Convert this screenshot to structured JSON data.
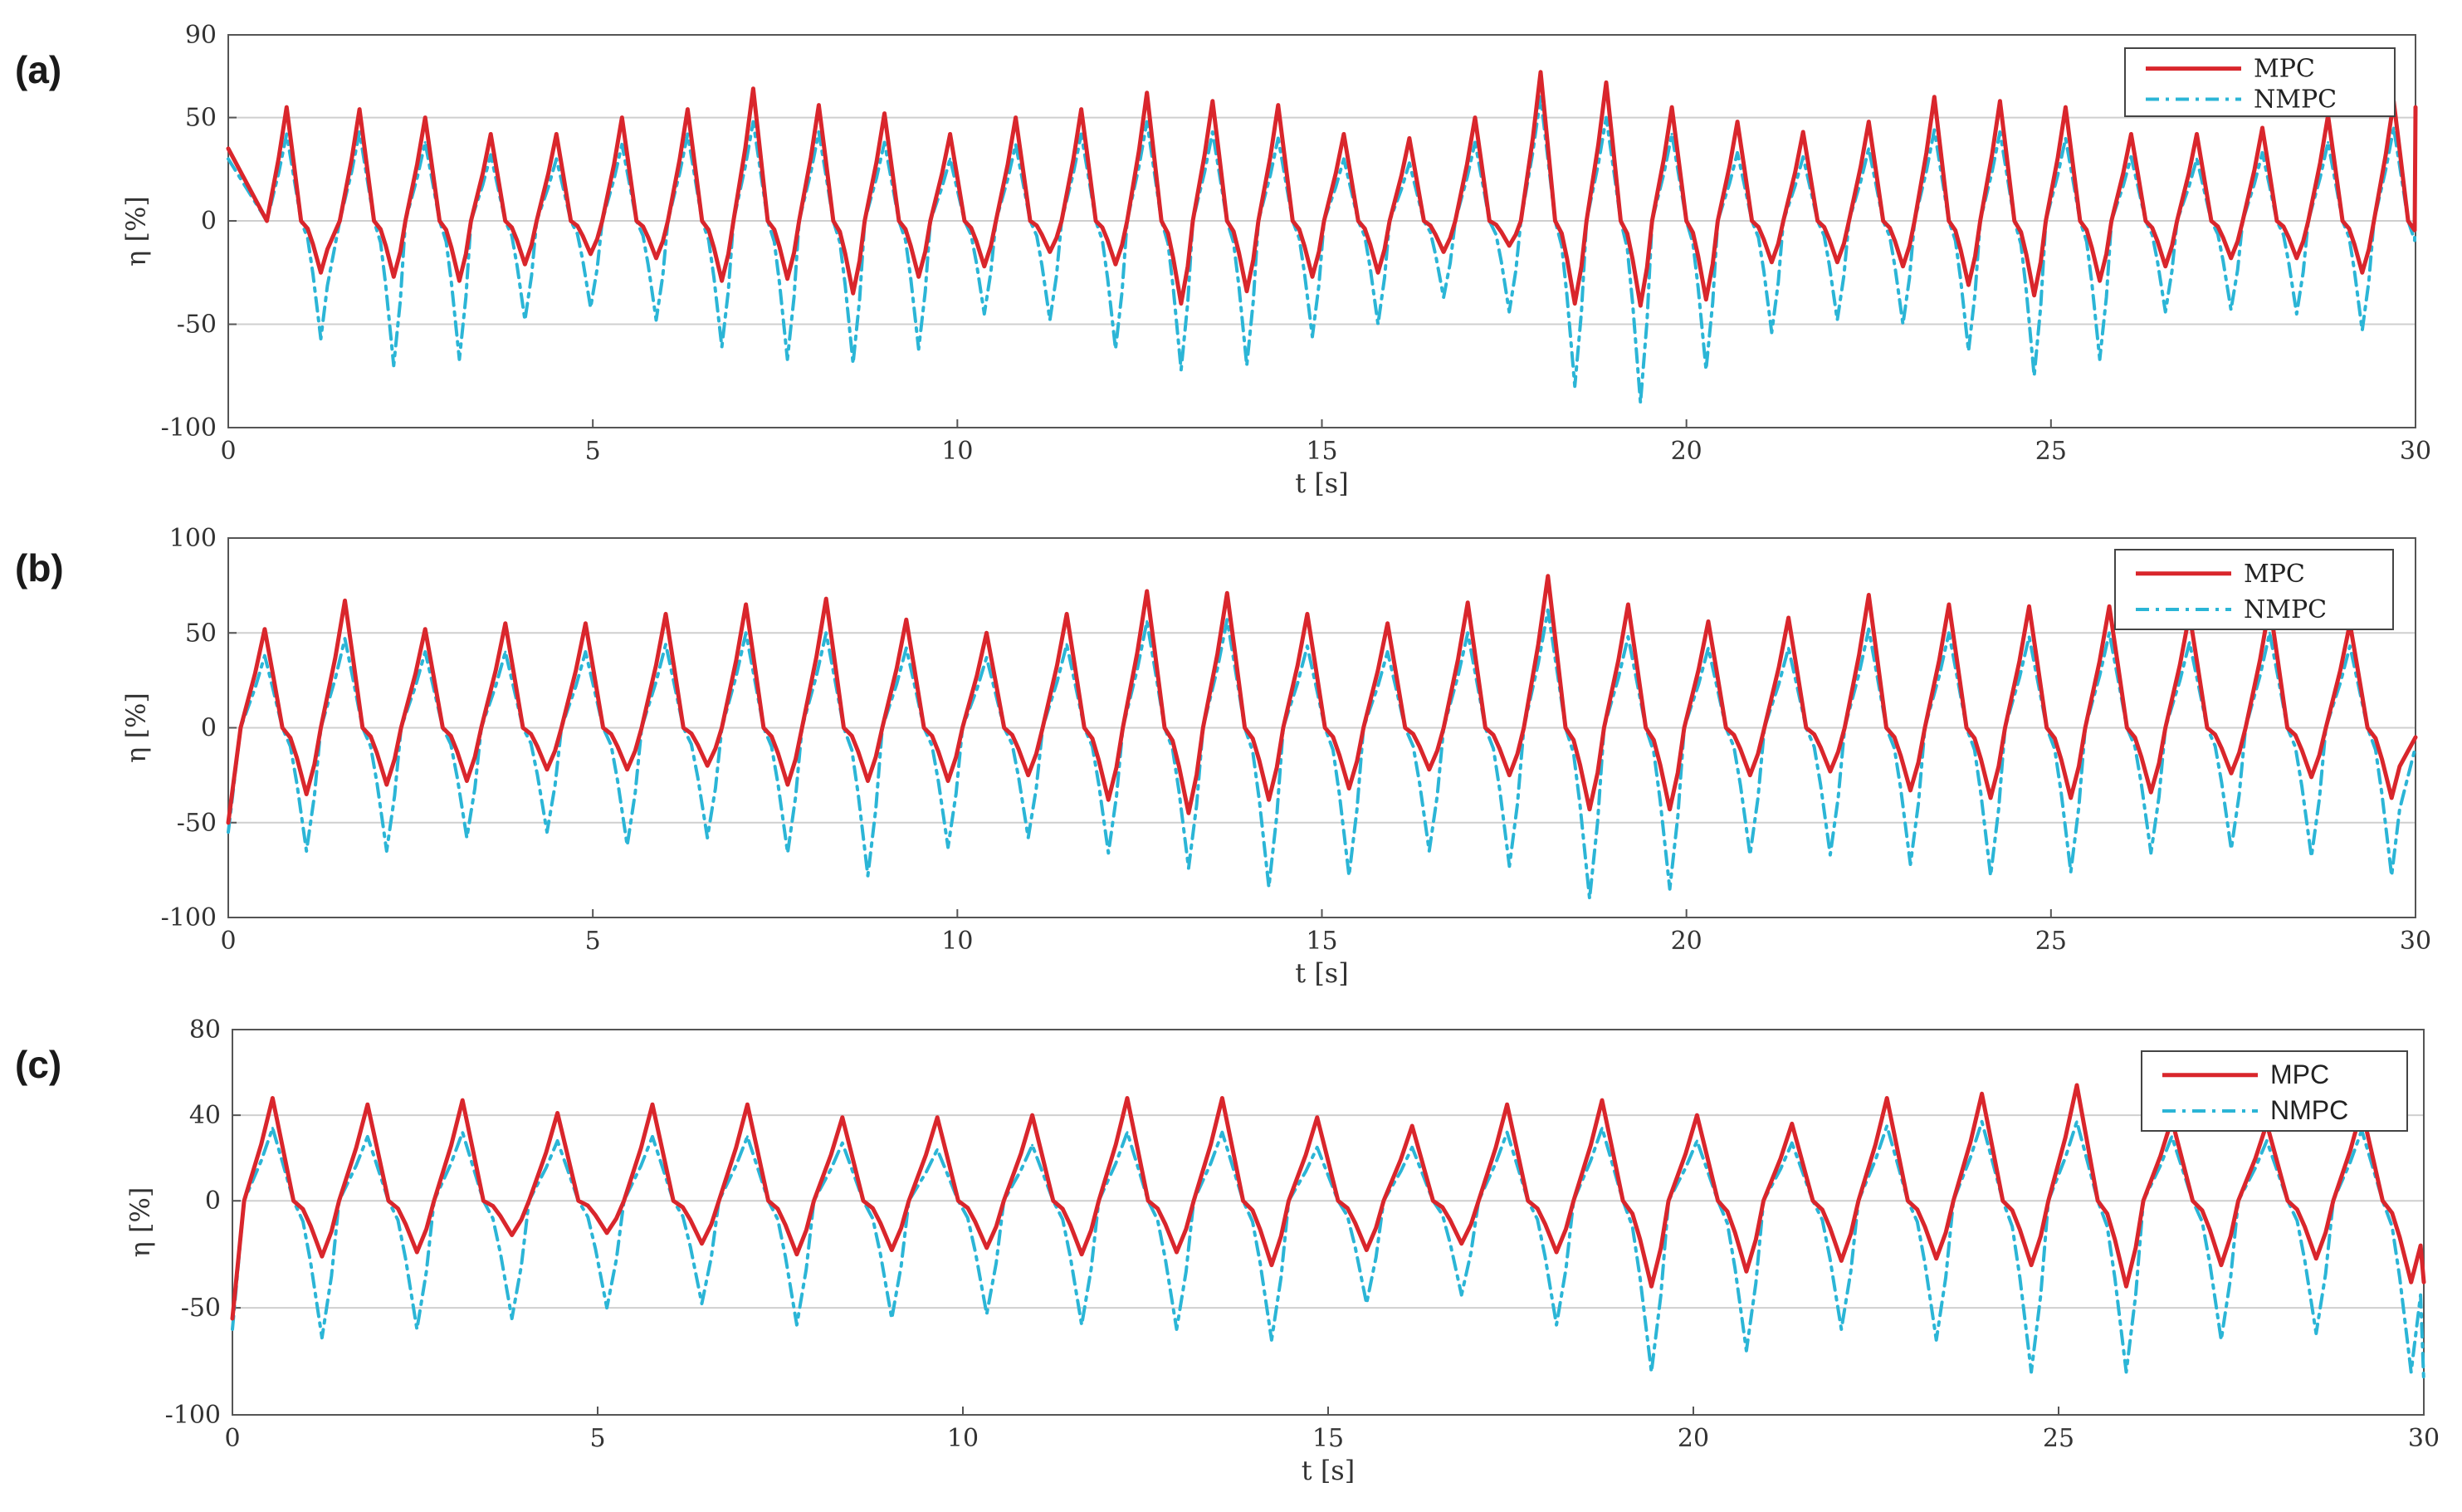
{
  "colors": {
    "mpc": "#d9262c",
    "nmpc": "#2bb5d6",
    "grid": "#cfcfcf",
    "axis": "#555555"
  },
  "chart_data": [
    {
      "panel_label": "(a)",
      "type": "line",
      "xlabel": "t [s]",
      "ylabel": "η [%]",
      "xlim": [
        0,
        30
      ],
      "ylim": [
        -100,
        90
      ],
      "xticks": [
        0,
        5,
        10,
        15,
        20,
        25,
        30
      ],
      "yticks": [
        -100,
        -50,
        0,
        50,
        90
      ],
      "grid": true,
      "legend_position": "top-right",
      "series": [
        {
          "name": "MPC",
          "style": "solid",
          "start": 35,
          "end": 55,
          "peak_t": [
            0.8,
            1.8,
            2.7,
            3.6,
            4.5,
            5.4,
            6.3,
            7.2,
            8.1,
            9.0,
            9.9,
            10.8,
            11.7,
            12.6,
            13.5,
            14.4,
            15.3,
            16.2,
            17.1,
            18.0,
            18.9,
            19.8,
            20.7,
            21.6,
            22.5,
            23.4,
            24.3,
            25.2,
            26.1,
            27.0,
            27.9,
            28.8,
            29.7
          ],
          "peaks": [
            55,
            54,
            50,
            42,
            42,
            50,
            54,
            64,
            56,
            52,
            42,
            50,
            54,
            62,
            58,
            56,
            42,
            40,
            50,
            72,
            67,
            55,
            48,
            43,
            48,
            60,
            58,
            55,
            42,
            42,
            45,
            51,
            58
          ],
          "troughs": [
            -25,
            -27,
            -29,
            -21,
            -16,
            -18,
            -29,
            -28,
            -35,
            -27,
            -22,
            -15,
            -21,
            -40,
            -34,
            -27,
            -25,
            -15,
            -12,
            -40,
            -41,
            -38,
            -20,
            -20,
            -22,
            -31,
            -36,
            -29,
            -22,
            -18,
            -18,
            -25,
            -30
          ]
        },
        {
          "name": "NMPC",
          "style": "dashdot",
          "start": 30,
          "end": 45,
          "peak_t": [
            0.8,
            1.8,
            2.7,
            3.6,
            4.5,
            5.4,
            6.3,
            7.2,
            8.1,
            9.0,
            9.9,
            10.8,
            11.7,
            12.6,
            13.5,
            14.4,
            15.3,
            16.2,
            17.1,
            18.0,
            18.9,
            19.8,
            20.7,
            21.6,
            22.5,
            23.4,
            24.3,
            25.2,
            26.1,
            27.0,
            27.9,
            28.8,
            29.7
          ],
          "peaks": [
            42,
            43,
            38,
            32,
            30,
            37,
            42,
            48,
            43,
            38,
            30,
            37,
            42,
            48,
            43,
            40,
            30,
            28,
            38,
            60,
            50,
            42,
            33,
            31,
            35,
            44,
            43,
            40,
            31,
            30,
            33,
            38,
            45
          ],
          "troughs": [
            -57,
            -70,
            -67,
            -48,
            -42,
            -48,
            -61,
            -67,
            -69,
            -62,
            -45,
            -48,
            -62,
            -72,
            -70,
            -56,
            -50,
            -37,
            -44,
            -80,
            -88,
            -72,
            -54,
            -48,
            -50,
            -63,
            -75,
            -67,
            -44,
            -43,
            -45,
            -53,
            -63
          ]
        }
      ]
    },
    {
      "panel_label": "(b)",
      "type": "line",
      "xlabel": "t [s]",
      "ylabel": "η [%]",
      "xlim": [
        0,
        30
      ],
      "ylim": [
        -100,
        100
      ],
      "xticks": [
        0,
        5,
        10,
        15,
        20,
        25,
        30
      ],
      "yticks": [
        -100,
        -50,
        0,
        50,
        100
      ],
      "grid": true,
      "legend_position": "top-right",
      "series": [
        {
          "name": "MPC",
          "style": "solid",
          "start": -50,
          "end": -5,
          "peak_t": [
            0.5,
            1.6,
            2.7,
            3.8,
            4.9,
            6.0,
            7.1,
            8.2,
            9.3,
            10.4,
            11.5,
            12.6,
            13.7,
            14.8,
            15.9,
            17.0,
            18.1,
            19.2,
            20.3,
            21.4,
            22.5,
            23.6,
            24.7,
            25.8,
            26.9,
            28.0,
            29.1
          ],
          "peaks": [
            52,
            67,
            52,
            55,
            55,
            60,
            65,
            68,
            57,
            50,
            60,
            72,
            71,
            60,
            55,
            66,
            80,
            65,
            56,
            58,
            70,
            65,
            64,
            64,
            60,
            65,
            55
          ],
          "troughs": [
            -35,
            -30,
            -28,
            -22,
            -22,
            -20,
            -30,
            -28,
            -28,
            -25,
            -38,
            -45,
            -38,
            -32,
            -22,
            -25,
            -43,
            -43,
            -25,
            -23,
            -33,
            -37,
            -37,
            -34,
            -24,
            -26,
            -37
          ]
        },
        {
          "name": "NMPC",
          "style": "dashdot",
          "start": -55,
          "end": -10,
          "peak_t": [
            0.5,
            1.6,
            2.7,
            3.8,
            4.9,
            6.0,
            7.1,
            8.2,
            9.3,
            10.4,
            11.5,
            12.6,
            13.7,
            14.8,
            15.9,
            17.0,
            18.1,
            19.2,
            20.3,
            21.4,
            22.5,
            23.6,
            24.7,
            25.8,
            26.9,
            28.0,
            29.1
          ],
          "peaks": [
            38,
            47,
            40,
            40,
            40,
            44,
            50,
            50,
            42,
            37,
            44,
            56,
            57,
            43,
            40,
            50,
            62,
            48,
            42,
            42,
            52,
            50,
            48,
            50,
            45,
            50,
            43
          ],
          "troughs": [
            -65,
            -65,
            -58,
            -55,
            -62,
            -58,
            -66,
            -78,
            -63,
            -58,
            -66,
            -74,
            -84,
            -78,
            -65,
            -73,
            -90,
            -85,
            -67,
            -67,
            -72,
            -78,
            -76,
            -66,
            -64,
            -68,
            -78
          ]
        }
      ]
    },
    {
      "panel_label": "(c)",
      "type": "line",
      "xlabel": "t [s]",
      "ylabel": "η [%]",
      "xlim": [
        0,
        30
      ],
      "ylim": [
        -100,
        80
      ],
      "xticks": [
        0,
        5,
        10,
        15,
        20,
        25,
        30
      ],
      "yticks": [
        -100,
        -50,
        0,
        40,
        80
      ],
      "grid": true,
      "legend_position": "top-right",
      "series": [
        {
          "name": "MPC",
          "style": "solid",
          "start": -55,
          "end": -38,
          "peak_t": [
            0.55,
            1.85,
            3.15,
            4.45,
            5.75,
            7.05,
            8.35,
            9.65,
            10.95,
            12.25,
            13.55,
            14.85,
            16.15,
            17.45,
            18.75,
            20.05,
            21.35,
            22.65,
            23.95,
            25.25,
            26.55,
            27.85,
            29.15
          ],
          "peaks": [
            48,
            45,
            47,
            41,
            45,
            45,
            39,
            39,
            40,
            48,
            48,
            39,
            35,
            45,
            47,
            40,
            36,
            48,
            50,
            54,
            38,
            36,
            43
          ],
          "troughs": [
            -26,
            -24,
            -16,
            -15,
            -20,
            -25,
            -23,
            -22,
            -25,
            -24,
            -30,
            -23,
            -20,
            -24,
            -40,
            -33,
            -28,
            -27,
            -30,
            -40,
            -30,
            -27,
            -38
          ]
        },
        {
          "name": "NMPC",
          "style": "dashdot",
          "start": -60,
          "end": -85,
          "peak_t": [
            0.55,
            1.85,
            3.15,
            4.45,
            5.75,
            7.05,
            8.35,
            9.65,
            10.95,
            12.25,
            13.55,
            14.85,
            16.15,
            17.45,
            18.75,
            20.05,
            21.35,
            22.65,
            23.95,
            25.25,
            26.55,
            27.85,
            29.15
          ],
          "peaks": [
            34,
            30,
            32,
            28,
            30,
            30,
            27,
            24,
            26,
            32,
            32,
            25,
            25,
            32,
            34,
            28,
            27,
            35,
            37,
            37,
            30,
            28,
            33
          ],
          "troughs": [
            -64,
            -60,
            -55,
            -50,
            -48,
            -58,
            -55,
            -53,
            -58,
            -60,
            -65,
            -48,
            -44,
            -58,
            -80,
            -70,
            -60,
            -65,
            -80,
            -80,
            -65,
            -62,
            -80
          ]
        }
      ]
    }
  ]
}
